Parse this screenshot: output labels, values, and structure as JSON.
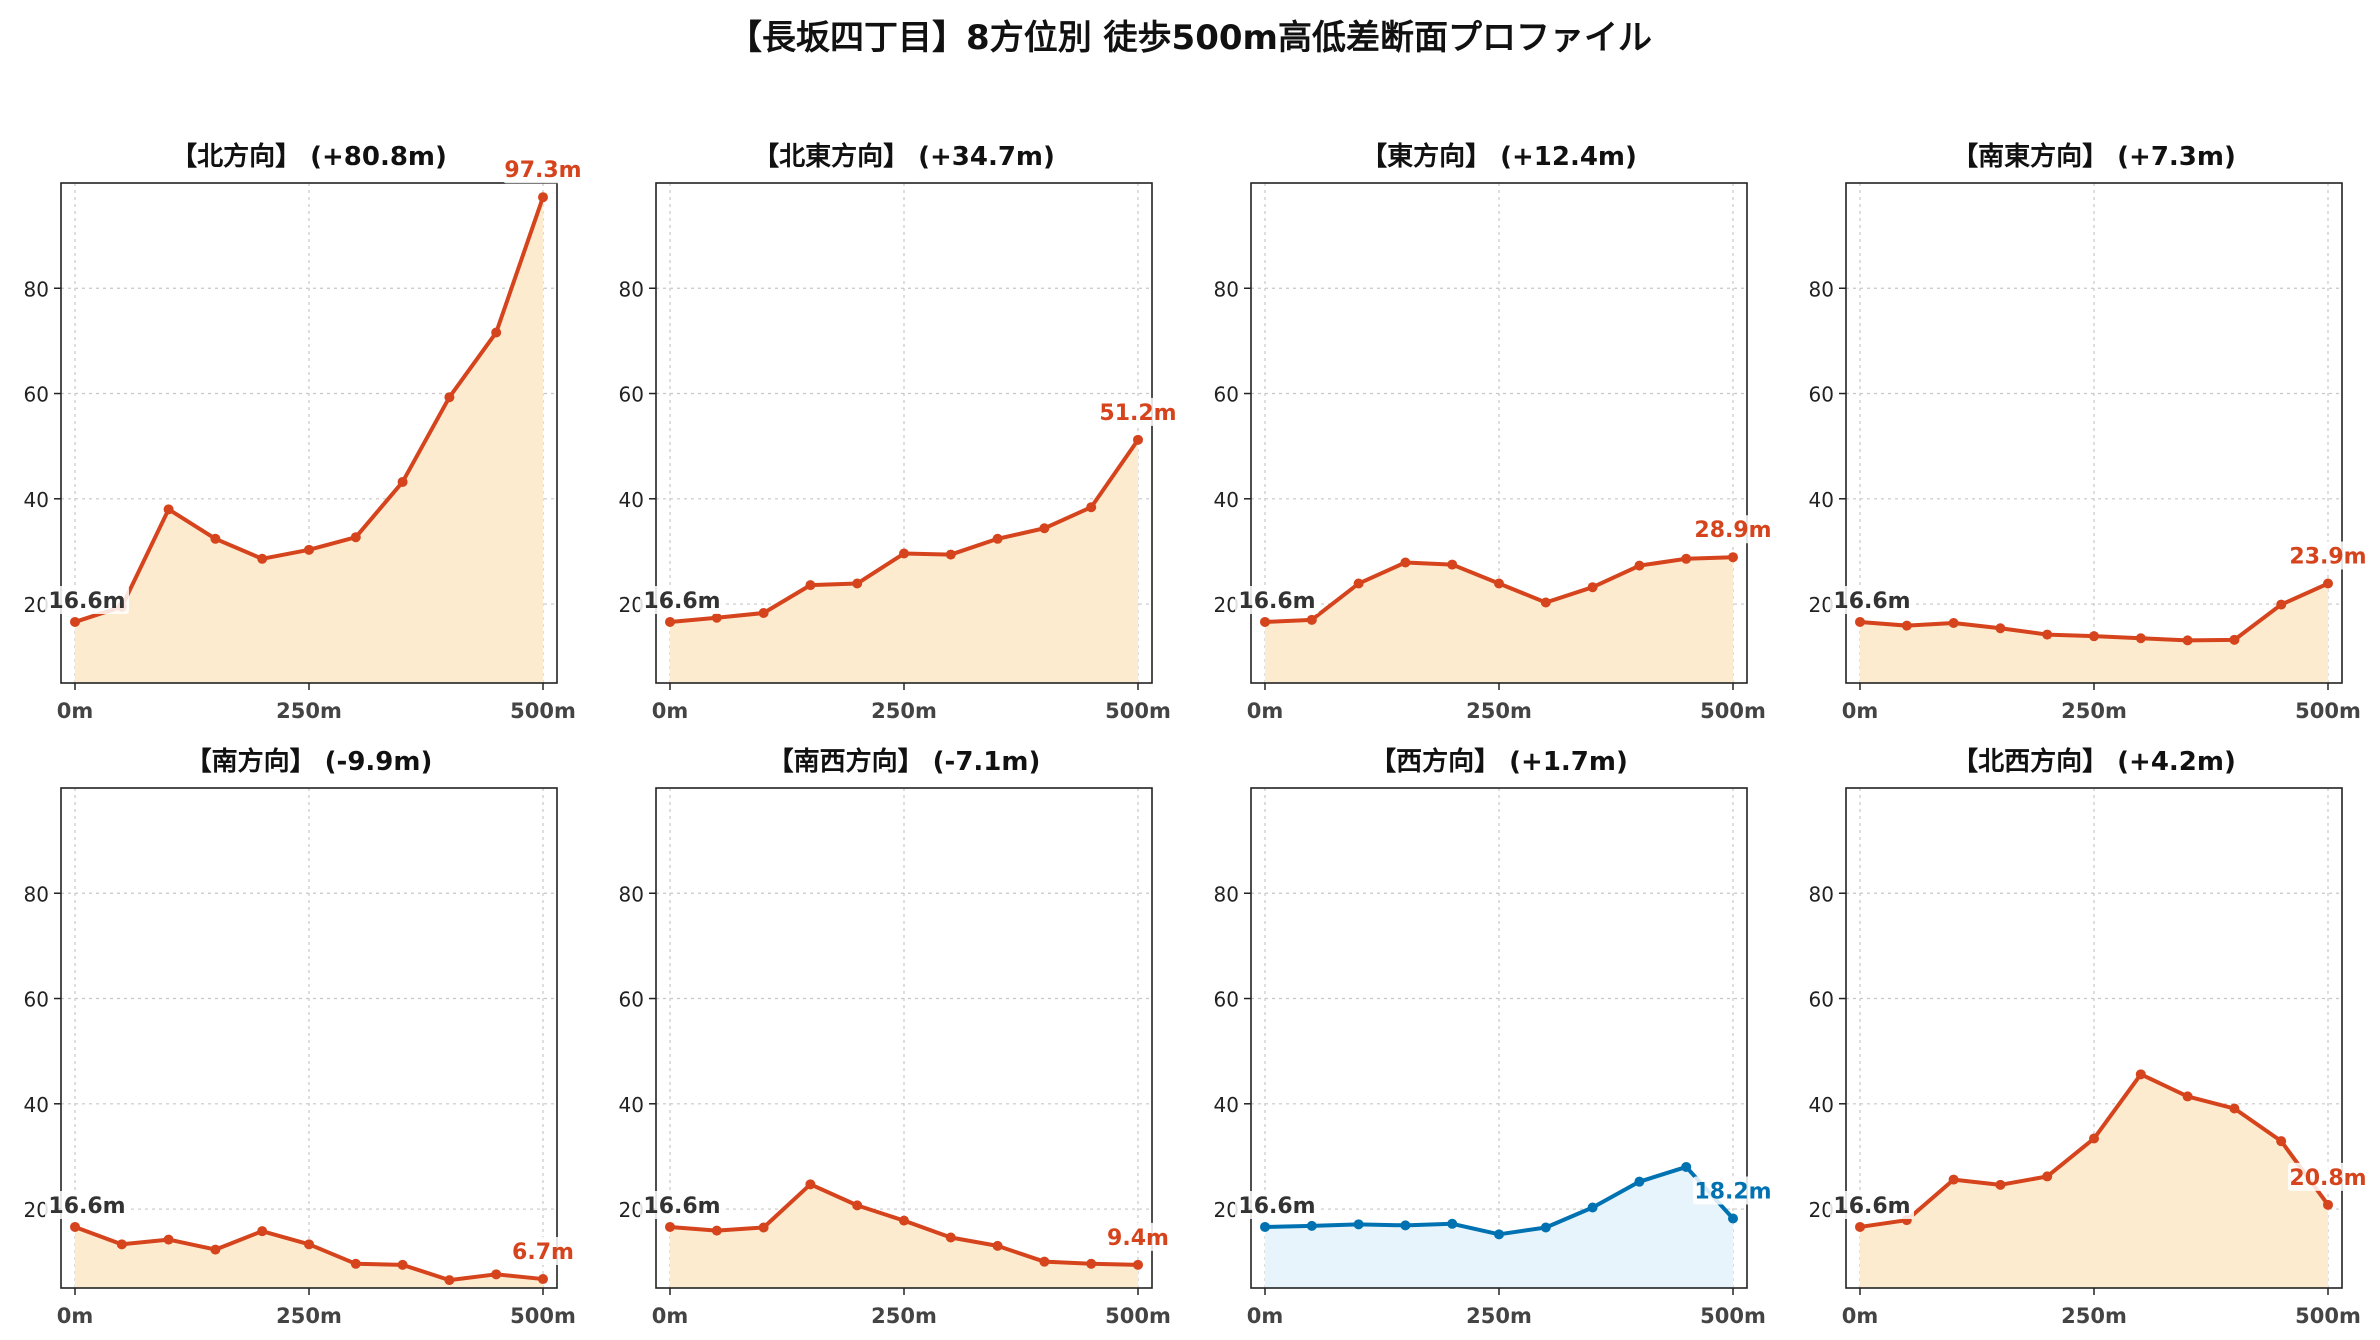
{
  "title": "【長坂四丁目】8方位別 徒歩500m高低差断面プロファイル",
  "colors": {
    "up": "#d5441c",
    "up_fill": "#fdebd0",
    "down": "#0072b2",
    "down_fill": "#e7f4fb",
    "grid": "#c8c8c8",
    "start_label": "#333333"
  },
  "chart_data": [
    {
      "type": "area",
      "title": "【北方向】 (+80.8m)",
      "x": [
        0,
        50,
        100,
        150,
        200,
        250,
        300,
        350,
        400,
        450,
        500
      ],
      "x_ticks": [
        "0m",
        "250m",
        "500m"
      ],
      "y_ticks": [
        20,
        40,
        60,
        80
      ],
      "ylim": [
        5,
        100
      ],
      "values": [
        16.6,
        19.5,
        38.0,
        32.4,
        28.6,
        30.3,
        32.7,
        43.2,
        59.3,
        71.6,
        97.3
      ],
      "start_label": "16.6m",
      "end_label": "97.3m",
      "trend": "up",
      "grid": true
    },
    {
      "type": "area",
      "title": "【北東方向】 (+34.7m)",
      "x": [
        0,
        50,
        100,
        150,
        200,
        250,
        300,
        350,
        400,
        450,
        500
      ],
      "x_ticks": [
        "0m",
        "250m",
        "500m"
      ],
      "y_ticks": [
        20,
        40,
        60,
        80
      ],
      "ylim": [
        5,
        100
      ],
      "values": [
        16.6,
        17.4,
        18.3,
        23.6,
        23.9,
        29.6,
        29.4,
        32.4,
        34.4,
        38.4,
        51.2
      ],
      "start_label": "16.6m",
      "end_label": "51.2m",
      "trend": "up",
      "grid": true
    },
    {
      "type": "area",
      "title": "【東方向】 (+12.4m)",
      "x": [
        0,
        50,
        100,
        150,
        200,
        250,
        300,
        350,
        400,
        450,
        500
      ],
      "x_ticks": [
        "0m",
        "250m",
        "500m"
      ],
      "y_ticks": [
        20,
        40,
        60,
        80
      ],
      "ylim": [
        5,
        100
      ],
      "values": [
        16.6,
        17.0,
        23.9,
        27.9,
        27.5,
        23.9,
        20.3,
        23.2,
        27.3,
        28.6,
        28.9
      ],
      "start_label": "16.6m",
      "end_label": "28.9m",
      "trend": "up",
      "grid": true
    },
    {
      "type": "area",
      "title": "【南東方向】 (+7.3m)",
      "x": [
        0,
        50,
        100,
        150,
        200,
        250,
        300,
        350,
        400,
        450,
        500
      ],
      "x_ticks": [
        "0m",
        "250m",
        "500m"
      ],
      "y_ticks": [
        20,
        40,
        60,
        80
      ],
      "ylim": [
        5,
        100
      ],
      "values": [
        16.6,
        15.9,
        16.4,
        15.4,
        14.2,
        13.9,
        13.5,
        13.1,
        13.2,
        19.9,
        23.9
      ],
      "start_label": "16.6m",
      "end_label": "23.9m",
      "trend": "up",
      "grid": true
    },
    {
      "type": "area",
      "title": "【南方向】 (-9.9m)",
      "x": [
        0,
        50,
        100,
        150,
        200,
        250,
        300,
        350,
        400,
        450,
        500
      ],
      "x_ticks": [
        "0m",
        "250m",
        "500m"
      ],
      "y_ticks": [
        20,
        40,
        60,
        80
      ],
      "ylim": [
        5,
        100
      ],
      "values": [
        16.6,
        13.3,
        14.2,
        12.3,
        15.8,
        13.3,
        9.6,
        9.4,
        6.5,
        7.6,
        6.7
      ],
      "start_label": "16.6m",
      "end_label": "6.7m",
      "trend": "up",
      "grid": true
    },
    {
      "type": "area",
      "title": "【南西方向】 (-7.1m)",
      "x": [
        0,
        50,
        100,
        150,
        200,
        250,
        300,
        350,
        400,
        450,
        500
      ],
      "x_ticks": [
        "0m",
        "250m",
        "500m"
      ],
      "y_ticks": [
        20,
        40,
        60,
        80
      ],
      "ylim": [
        5,
        100
      ],
      "values": [
        16.6,
        15.9,
        16.5,
        24.7,
        20.7,
        17.8,
        14.6,
        13.0,
        10.0,
        9.6,
        9.4
      ],
      "start_label": "16.6m",
      "end_label": "9.4m",
      "trend": "up",
      "grid": true
    },
    {
      "type": "area",
      "title": "【西方向】 (+1.7m)",
      "x": [
        0,
        50,
        100,
        150,
        200,
        250,
        300,
        350,
        400,
        450,
        500
      ],
      "x_ticks": [
        "0m",
        "250m",
        "500m"
      ],
      "y_ticks": [
        20,
        40,
        60,
        80
      ],
      "ylim": [
        5,
        100
      ],
      "values": [
        16.6,
        16.8,
        17.1,
        16.9,
        17.2,
        15.2,
        16.5,
        20.3,
        25.2,
        28.0,
        18.2
      ],
      "start_label": "16.6m",
      "end_label": "18.2m",
      "trend": "down",
      "grid": true
    },
    {
      "type": "area",
      "title": "【北西方向】 (+4.2m)",
      "x": [
        0,
        50,
        100,
        150,
        200,
        250,
        300,
        350,
        400,
        450,
        500
      ],
      "x_ticks": [
        "0m",
        "250m",
        "500m"
      ],
      "y_ticks": [
        20,
        40,
        60,
        80
      ],
      "ylim": [
        5,
        100
      ],
      "values": [
        16.6,
        17.9,
        25.6,
        24.6,
        26.2,
        33.4,
        45.6,
        41.4,
        39.1,
        32.9,
        20.8
      ],
      "start_label": "16.6m",
      "end_label": "20.8m",
      "trend": "up",
      "grid": true
    }
  ]
}
